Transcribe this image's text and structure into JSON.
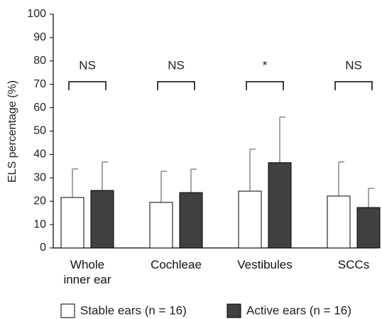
{
  "chart_data": {
    "type": "bar",
    "y_label": "ELS percentage (%)",
    "categories": [
      "Whole inner ear",
      "Cochleae",
      "Vestibules",
      "SCCs"
    ],
    "series": [
      {
        "name": "Stable ears (n = 16)",
        "color": "#ffffff",
        "values": [
          21.6,
          19.5,
          24.3,
          22.2
        ],
        "errors": [
          12.2,
          13.3,
          18,
          14.6
        ]
      },
      {
        "name": "Active ears (n = 16)",
        "color": "#404040",
        "values": [
          24.6,
          23.7,
          36.5,
          17.3
        ],
        "errors": [
          12.2,
          10,
          19.5,
          8.2
        ]
      }
    ],
    "significance": [
      "NS",
      "NS",
      "*",
      "NS"
    ],
    "ylim": [
      0,
      100
    ],
    "yticks": [
      0,
      10,
      20,
      30,
      40,
      50,
      60,
      70,
      80,
      90,
      100
    ],
    "grid": false
  }
}
